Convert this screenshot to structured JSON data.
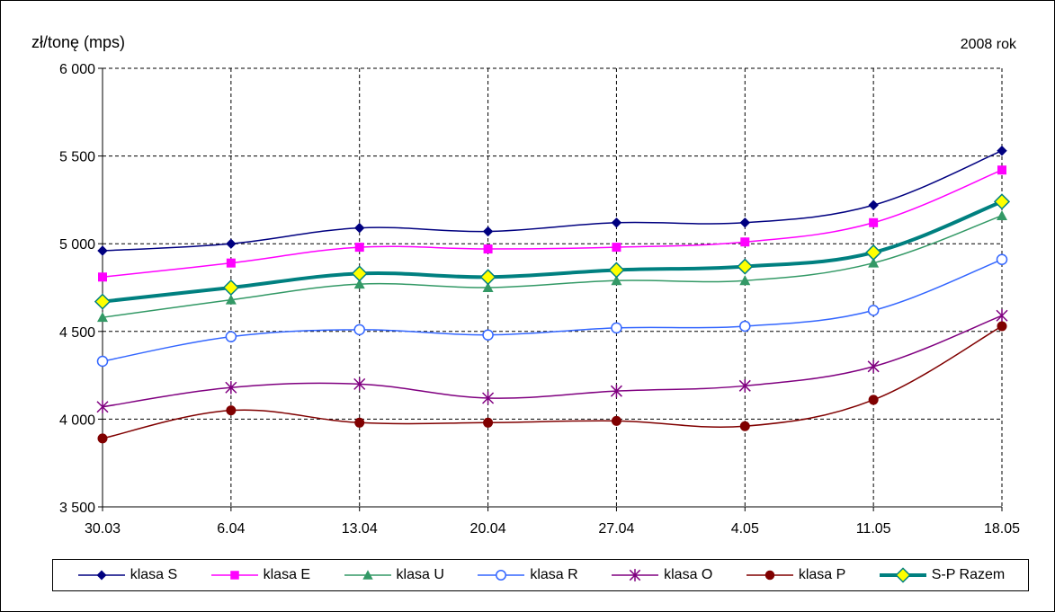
{
  "chart_data": {
    "type": "line",
    "title": "",
    "ylabel": "zł/tonę (mps)",
    "annotation": "2008 rok",
    "categories": [
      "30.03",
      "6.04",
      "13.04",
      "20.04",
      "27.04",
      "4.05",
      "11.05",
      "18.05"
    ],
    "ylim": [
      3500,
      6000
    ],
    "yticks": [
      3500,
      4000,
      4500,
      5000,
      5500,
      6000
    ],
    "ytick_labels": [
      "3 500",
      "4 000",
      "4 500",
      "5 000",
      "5 500",
      "6 000"
    ],
    "grid": true,
    "legend_position": "bottom",
    "series": [
      {
        "name": "klasa S",
        "values": [
          4960,
          5000,
          5090,
          5070,
          5120,
          5120,
          5220,
          5530
        ],
        "color": "#000080",
        "marker": "diamond",
        "width": 1.5
      },
      {
        "name": "klasa E",
        "values": [
          4810,
          4890,
          4980,
          4970,
          4980,
          5010,
          5120,
          5420
        ],
        "color": "#ff00ff",
        "marker": "square",
        "width": 1.5
      },
      {
        "name": "klasa U",
        "values": [
          4580,
          4680,
          4770,
          4750,
          4790,
          4790,
          4890,
          5160
        ],
        "color": "#339966",
        "marker": "triangle",
        "width": 1.5
      },
      {
        "name": "klasa R",
        "values": [
          4330,
          4470,
          4510,
          4480,
          4520,
          4530,
          4620,
          4910
        ],
        "color": "#3366ff",
        "marker": "circle-open",
        "width": 1.5
      },
      {
        "name": "klasa O",
        "values": [
          4070,
          4180,
          4200,
          4120,
          4160,
          4190,
          4300,
          4590
        ],
        "color": "#800080",
        "marker": "star",
        "width": 1.5
      },
      {
        "name": "klasa P",
        "values": [
          3890,
          4050,
          3980,
          3980,
          3990,
          3960,
          4110,
          4530
        ],
        "color": "#800000",
        "marker": "circle",
        "width": 1.5
      },
      {
        "name": "S-P Razem",
        "values": [
          4670,
          4750,
          4830,
          4810,
          4850,
          4870,
          4950,
          5240
        ],
        "color": "#008080",
        "marker": "diamond-yellow",
        "width": 4
      }
    ]
  }
}
